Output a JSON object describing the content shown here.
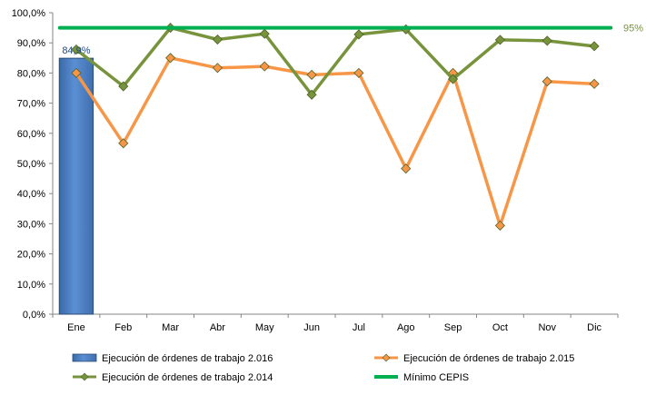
{
  "chart_data": {
    "type": "bar+line",
    "title": "",
    "xlabel": "",
    "ylabel": "",
    "categories": [
      "Ene",
      "Feb",
      "Mar",
      "Abr",
      "May",
      "Jun",
      "Jul",
      "Ago",
      "Sep",
      "Oct",
      "Nov",
      "Dic"
    ],
    "ylim": [
      0,
      100
    ],
    "y_ticks": [
      "0,0%",
      "10,0%",
      "20,0%",
      "30,0%",
      "40,0%",
      "50,0%",
      "60,0%",
      "70,0%",
      "80,0%",
      "90,0%",
      "100,0%"
    ],
    "grid": false,
    "legend_position": "bottom",
    "series": [
      {
        "name": "Ejecución de órdenes de trabajo 2.016",
        "type": "bar",
        "color": "#4f81bd",
        "values": [
          84.9,
          null,
          null,
          null,
          null,
          null,
          null,
          null,
          null,
          null,
          null,
          null
        ],
        "data_labels": [
          "84,9%"
        ]
      },
      {
        "name": "Ejecución de órdenes de trabajo 2.015",
        "type": "line",
        "marker": "diamond",
        "color": "#f79646",
        "values": [
          80.0,
          56.7,
          85.0,
          81.7,
          82.2,
          79.4,
          80.0,
          48.3,
          80.0,
          29.4,
          77.2,
          76.4
        ]
      },
      {
        "name": "Ejecución de órdenes de trabajo 2.014",
        "type": "line",
        "marker": "diamond",
        "color": "#77933c",
        "values": [
          87.8,
          75.6,
          95.0,
          91.1,
          93.0,
          72.8,
          92.8,
          94.5,
          78.0,
          91.0,
          90.7,
          88.9
        ]
      },
      {
        "name": "Mínimo CEPIS",
        "type": "line",
        "marker": "none",
        "color": "#00b050",
        "values": [
          95,
          95,
          95,
          95,
          95,
          95,
          95,
          95,
          95,
          95,
          95,
          95
        ],
        "end_label": "95%"
      }
    ]
  }
}
